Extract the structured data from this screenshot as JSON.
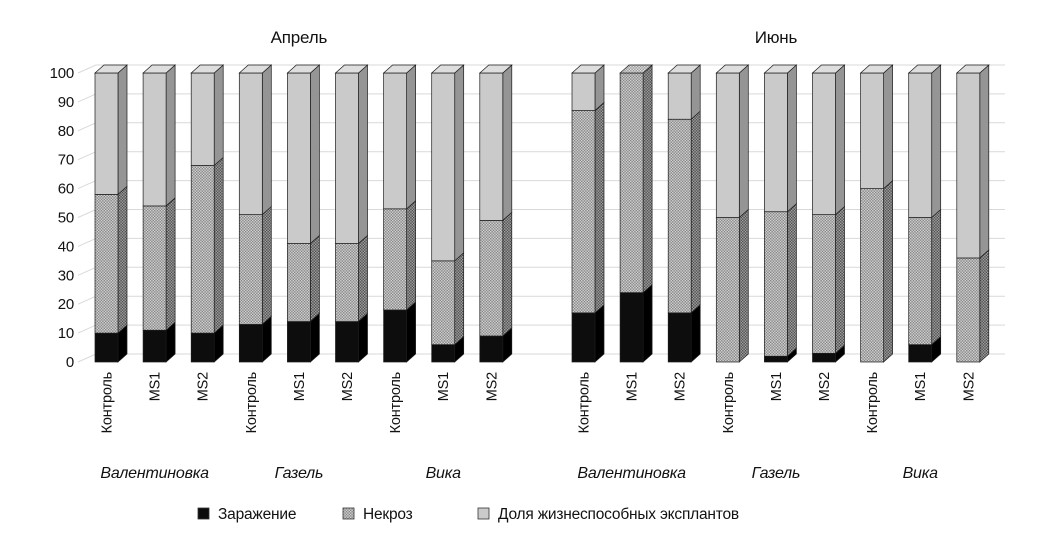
{
  "chart_data": {
    "type": "bar",
    "subtype": "stacked-3d-column",
    "title": "",
    "ylim": [
      0,
      100
    ],
    "yticks": [
      0,
      10,
      20,
      30,
      40,
      50,
      60,
      70,
      80,
      90,
      100
    ],
    "grid": true,
    "legend_position": "bottom",
    "legend": [
      "Заражение",
      "Некроз",
      "Доля жизнеспособных эксплантов"
    ],
    "series_keys": [
      "infection",
      "necrosis",
      "viable"
    ],
    "panels": [
      {
        "title": "Апрель",
        "groups": [
          {
            "name": "Валентиновка",
            "bars": [
              {
                "label": "Контроль",
                "values": [
                  10,
                  48,
                  42
                ]
              },
              {
                "label": "MS1",
                "values": [
                  11,
                  43,
                  46
                ]
              },
              {
                "label": "MS2",
                "values": [
                  10,
                  58,
                  32
                ]
              }
            ]
          },
          {
            "name": "Газель",
            "bars": [
              {
                "label": "Контроль",
                "values": [
                  13,
                  38,
                  49
                ]
              },
              {
                "label": "MS1",
                "values": [
                  14,
                  27,
                  59
                ]
              },
              {
                "label": "MS2",
                "values": [
                  14,
                  27,
                  59
                ]
              }
            ]
          },
          {
            "name": "Вика",
            "bars": [
              {
                "label": "Контроль",
                "values": [
                  18,
                  35,
                  47
                ]
              },
              {
                "label": "MS1",
                "values": [
                  6,
                  29,
                  65
                ]
              },
              {
                "label": "MS2",
                "values": [
                  9,
                  40,
                  51
                ]
              }
            ]
          }
        ]
      },
      {
        "title": "Июнь",
        "groups": [
          {
            "name": "Валентиновка",
            "bars": [
              {
                "label": "Контроль",
                "values": [
                  17,
                  70,
                  13
                ]
              },
              {
                "label": "MS1",
                "values": [
                  24,
                  76,
                  0
                ]
              },
              {
                "label": "MS2",
                "values": [
                  17,
                  67,
                  16
                ]
              }
            ]
          },
          {
            "name": "Газель",
            "bars": [
              {
                "label": "Контроль",
                "values": [
                  0,
                  50,
                  50
                ]
              },
              {
                "label": "MS1",
                "values": [
                  2,
                  50,
                  48
                ]
              },
              {
                "label": "MS2",
                "values": [
                  3,
                  48,
                  49
                ]
              }
            ]
          },
          {
            "name": "Вика",
            "bars": [
              {
                "label": "Контроль",
                "values": [
                  0,
                  60,
                  40
                ]
              },
              {
                "label": "MS1",
                "values": [
                  6,
                  44,
                  50
                ]
              },
              {
                "label": "MS2",
                "values": [
                  0,
                  36,
                  64
                ]
              }
            ]
          }
        ]
      }
    ],
    "colors": {
      "infection": "#0d0d0d",
      "infection_side": "#000000",
      "necrosis_base": "#d4d4d4",
      "necrosis_dot": "#848484",
      "necrosis_side_base": "#a2a2a2",
      "necrosis_side_dot": "#4e4e4e",
      "necrosis_top_base": "#e2e2e2",
      "necrosis_top_dot": "#969696",
      "viable": "#cacaca",
      "viable_side": "#959595",
      "viable_top": "#dedede",
      "gridline": "#d9d9d9",
      "outline": "#1c1c1c",
      "text": "#121212"
    }
  }
}
